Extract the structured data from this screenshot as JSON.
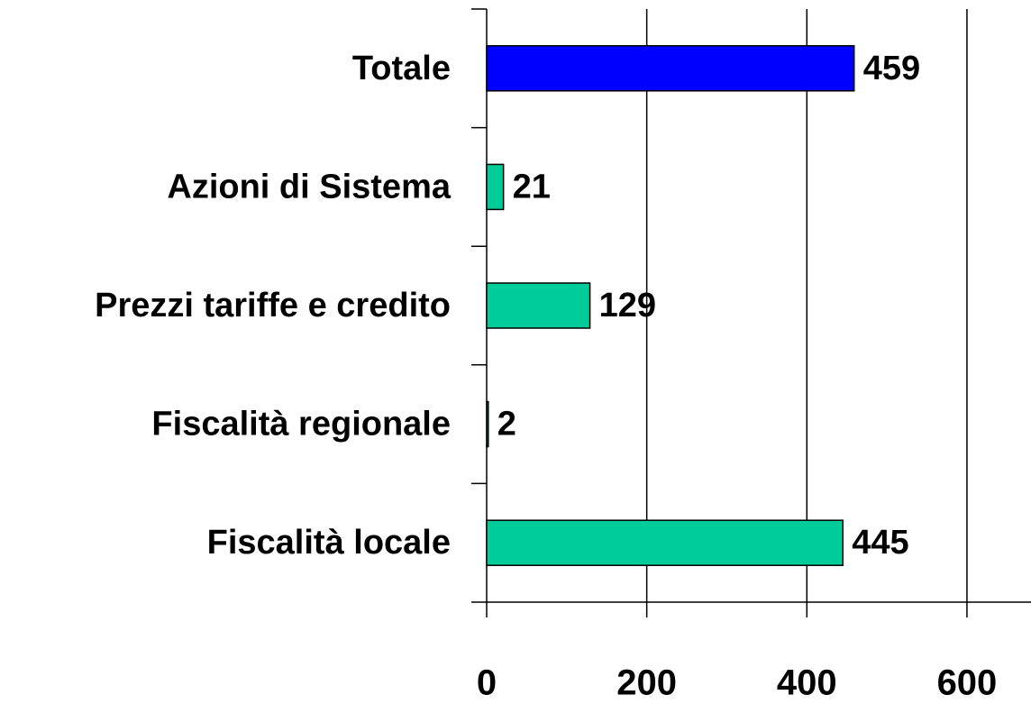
{
  "chart_data": {
    "type": "hbar",
    "categories": [
      "Totale",
      "Azioni di Sistema",
      "Prezzi tariffe e credito",
      "Fiscalità regionale",
      "Fiscalità locale"
    ],
    "values": [
      459,
      21,
      129,
      2,
      445
    ],
    "colors": [
      "#0000ff",
      "#00cc99",
      "#00cc99",
      "#00cc99",
      "#00cc99"
    ],
    "xlim": [
      0,
      680
    ],
    "xticks": [
      0,
      200,
      400,
      600
    ],
    "grid": true
  }
}
